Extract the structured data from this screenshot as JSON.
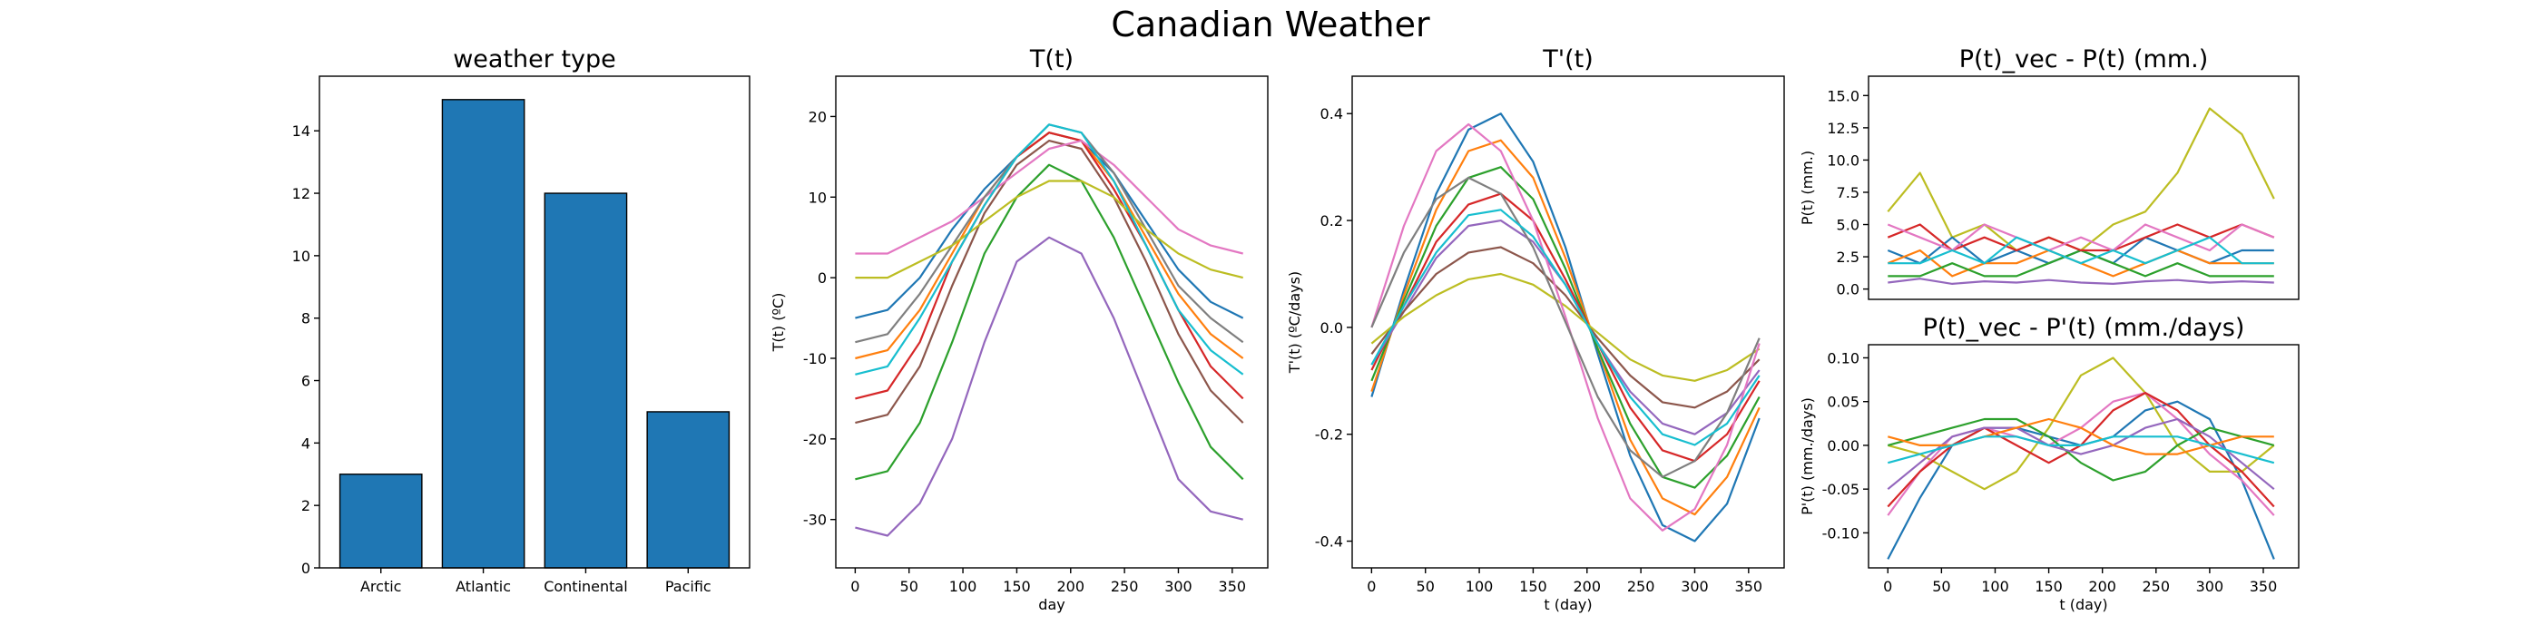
{
  "title": "Canadian Weather",
  "chart_data": [
    {
      "type": "bar",
      "title": "weather type",
      "categories": [
        "Arctic",
        "Atlantic",
        "Continental",
        "Pacific"
      ],
      "values": [
        3,
        15,
        12,
        5
      ],
      "color": "#1f77b4",
      "edgecolor": "#000000",
      "ylim": [
        0,
        15.75
      ],
      "yticks": [
        0,
        2,
        4,
        6,
        8,
        10,
        12,
        14
      ]
    },
    {
      "type": "line",
      "title": "T(t)",
      "xlabel": "day",
      "ylabel": "T(t) (ºC)",
      "xlim": [
        -18,
        383
      ],
      "xticks": [
        0,
        50,
        100,
        150,
        200,
        250,
        300,
        350
      ],
      "ylim": [
        -36,
        25
      ],
      "yticks": [
        -30,
        -20,
        -10,
        0,
        10,
        20
      ],
      "x": [
        0,
        30,
        60,
        90,
        120,
        150,
        180,
        210,
        240,
        270,
        300,
        330,
        360
      ],
      "series": [
        {
          "color": "#1f77b4",
          "values": [
            -5,
            -4,
            0,
            6,
            11,
            15,
            18,
            17,
            13,
            7,
            1,
            -3,
            -5
          ]
        },
        {
          "color": "#ff7f0e",
          "values": [
            -10,
            -9,
            -4,
            3,
            10,
            15,
            18,
            17,
            12,
            5,
            -2,
            -7,
            -10
          ]
        },
        {
          "color": "#2ca02c",
          "values": [
            -25,
            -24,
            -18,
            -8,
            3,
            10,
            14,
            12,
            5,
            -4,
            -13,
            -21,
            -25
          ]
        },
        {
          "color": "#d62728",
          "values": [
            -15,
            -14,
            -8,
            2,
            9,
            15,
            18,
            17,
            11,
            4,
            -4,
            -11,
            -15
          ]
        },
        {
          "color": "#9467bd",
          "values": [
            -31,
            -32,
            -28,
            -20,
            -8,
            2,
            5,
            3,
            -5,
            -15,
            -25,
            -29,
            -30
          ]
        },
        {
          "color": "#8c564b",
          "values": [
            -18,
            -17,
            -11,
            -1,
            8,
            14,
            17,
            16,
            10,
            2,
            -7,
            -14,
            -18
          ]
        },
        {
          "color": "#e377c2",
          "values": [
            3,
            3,
            5,
            7,
            10,
            13,
            16,
            17,
            14,
            10,
            6,
            4,
            3
          ]
        },
        {
          "color": "#7f7f7f",
          "values": [
            -8,
            -7,
            -2,
            4,
            10,
            15,
            19,
            18,
            13,
            6,
            -1,
            -5,
            -8
          ]
        },
        {
          "color": "#bcbd22",
          "values": [
            0,
            0,
            2,
            4,
            7,
            10,
            12,
            12,
            10,
            6,
            3,
            1,
            0
          ]
        },
        {
          "color": "#17becf",
          "values": [
            -12,
            -11,
            -5,
            2,
            9,
            15,
            19,
            18,
            12,
            4,
            -4,
            -9,
            -12
          ]
        }
      ]
    },
    {
      "type": "line",
      "title": "T'(t)",
      "xlabel": "t (day)",
      "ylabel": "T'(t) (ºC/days)",
      "xlim": [
        -18,
        383
      ],
      "xticks": [
        0,
        50,
        100,
        150,
        200,
        250,
        300,
        350
      ],
      "ylim": [
        -0.45,
        0.47
      ],
      "yticks": [
        -0.4,
        -0.2,
        {
          "value": 0,
          "label": "0.0"
        },
        0.2,
        0.4
      ],
      "x": [
        0,
        30,
        60,
        90,
        120,
        150,
        180,
        210,
        240,
        270,
        300,
        330,
        360
      ],
      "series": [
        {
          "color": "#1f77b4",
          "values": [
            -0.13,
            0.07,
            0.25,
            0.37,
            0.4,
            0.31,
            0.15,
            -0.05,
            -0.24,
            -0.37,
            -0.4,
            -0.33,
            -0.17
          ]
        },
        {
          "color": "#ff7f0e",
          "values": [
            -0.12,
            0.06,
            0.22,
            0.33,
            0.35,
            0.28,
            0.13,
            -0.04,
            -0.21,
            -0.32,
            -0.35,
            -0.28,
            -0.15
          ]
        },
        {
          "color": "#2ca02c",
          "values": [
            -0.1,
            0.05,
            0.19,
            0.28,
            0.3,
            0.24,
            0.11,
            -0.04,
            -0.18,
            -0.28,
            -0.3,
            -0.24,
            -0.13
          ]
        },
        {
          "color": "#d62728",
          "values": [
            -0.08,
            0.04,
            0.16,
            0.23,
            0.25,
            0.2,
            0.09,
            -0.03,
            -0.15,
            -0.23,
            -0.25,
            -0.2,
            -0.1
          ]
        },
        {
          "color": "#9467bd",
          "values": [
            -0.07,
            0.03,
            0.13,
            0.19,
            0.2,
            0.16,
            0.08,
            -0.03,
            -0.12,
            -0.18,
            -0.2,
            -0.16,
            -0.08
          ]
        },
        {
          "color": "#8c564b",
          "values": [
            -0.05,
            0.03,
            0.1,
            0.14,
            0.15,
            0.12,
            0.06,
            -0.02,
            -0.09,
            -0.14,
            -0.15,
            -0.12,
            -0.06
          ]
        },
        {
          "color": "#bcbd22",
          "values": [
            -0.03,
            0.02,
            0.06,
            0.09,
            0.1,
            0.08,
            0.04,
            -0.01,
            -0.06,
            -0.09,
            -0.1,
            -0.08,
            -0.04
          ]
        },
        {
          "color": "#e377c2",
          "values": [
            0,
            0.19,
            0.33,
            0.38,
            0.33,
            0.2,
            0.02,
            -0.17,
            -0.32,
            -0.38,
            -0.34,
            -0.22,
            -0.03
          ]
        },
        {
          "color": "#7f7f7f",
          "values": [
            0,
            0.14,
            0.24,
            0.28,
            0.25,
            0.15,
            0.01,
            -0.13,
            -0.23,
            -0.28,
            -0.25,
            -0.16,
            -0.02
          ]
        },
        {
          "color": "#17becf",
          "values": [
            -0.07,
            0.04,
            0.14,
            0.21,
            0.22,
            0.17,
            0.08,
            -0.03,
            -0.13,
            -0.2,
            -0.22,
            -0.18,
            -0.09
          ]
        }
      ]
    },
    {
      "type": "line",
      "title": "P(t)_vec - P(t) (mm.)",
      "ylabel": "P(t) (mm.)",
      "xlim": [
        -18,
        383
      ],
      "ylim": [
        -0.8,
        16.5
      ],
      "yticks": [
        {
          "value": 0,
          "label": "0.0"
        },
        {
          "value": 2.5,
          "label": "2.5"
        },
        {
          "value": 5,
          "label": "5.0"
        },
        {
          "value": 7.5,
          "label": "7.5"
        },
        {
          "value": 10,
          "label": "10.0"
        },
        {
          "value": 12.5,
          "label": "12.5"
        },
        {
          "value": 15,
          "label": "15.0"
        }
      ],
      "x": [
        0,
        30,
        60,
        90,
        120,
        150,
        180,
        210,
        240,
        270,
        300,
        330,
        360
      ],
      "series": [
        {
          "color": "#bcbd22",
          "values": [
            6,
            9,
            4,
            5,
            3,
            4,
            3,
            5,
            6,
            9,
            14,
            12,
            7
          ]
        },
        {
          "color": "#1f77b4",
          "values": [
            3,
            2,
            4,
            2,
            3,
            2,
            3,
            2,
            4,
            3,
            2,
            3,
            3
          ]
        },
        {
          "color": "#ff7f0e",
          "values": [
            2,
            3,
            1,
            2,
            2,
            3,
            2,
            1,
            2,
            3,
            2,
            2,
            2
          ]
        },
        {
          "color": "#2ca02c",
          "values": [
            1,
            1,
            2,
            1,
            1,
            2,
            3,
            2,
            1,
            2,
            1,
            1,
            1
          ]
        },
        {
          "color": "#d62728",
          "values": [
            4,
            5,
            3,
            4,
            3,
            4,
            3,
            3,
            4,
            5,
            4,
            5,
            4
          ]
        },
        {
          "color": "#9467bd",
          "values": [
            0.5,
            0.8,
            0.4,
            0.6,
            0.5,
            0.7,
            0.5,
            0.4,
            0.6,
            0.7,
            0.5,
            0.6,
            0.5
          ]
        },
        {
          "color": "#e377c2",
          "values": [
            5,
            4,
            3,
            5,
            4,
            3,
            4,
            3,
            5,
            4,
            3,
            5,
            4
          ]
        },
        {
          "color": "#17becf",
          "values": [
            2,
            2,
            3,
            2,
            4,
            3,
            2,
            3,
            2,
            3,
            4,
            2,
            2
          ]
        }
      ]
    },
    {
      "type": "line",
      "title": "P(t)_vec - P'(t) (mm./days)",
      "xlabel": "t (day)",
      "ylabel": "P'(t) (mm./days)",
      "xlim": [
        -18,
        383
      ],
      "xticks": [
        0,
        50,
        100,
        150,
        200,
        250,
        300,
        350
      ],
      "ylim": [
        -0.14,
        0.115
      ],
      "yticks": [
        {
          "value": -0.1,
          "label": "-0.10"
        },
        {
          "value": -0.05,
          "label": "-0.05"
        },
        {
          "value": 0,
          "label": "0.00"
        },
        {
          "value": 0.05,
          "label": "0.05"
        },
        {
          "value": 0.1,
          "label": "0.10"
        }
      ],
      "x": [
        0,
        30,
        60,
        90,
        120,
        150,
        180,
        210,
        240,
        270,
        300,
        330,
        360
      ],
      "series": [
        {
          "color": "#1f77b4",
          "values": [
            -0.13,
            -0.06,
            0,
            0.02,
            0.02,
            0.01,
            0,
            0.01,
            0.04,
            0.05,
            0.03,
            -0.04,
            -0.13
          ]
        },
        {
          "color": "#bcbd22",
          "values": [
            0,
            -0.01,
            -0.03,
            -0.05,
            -0.03,
            0.02,
            0.08,
            0.1,
            0.06,
            0,
            -0.03,
            -0.03,
            0
          ]
        },
        {
          "color": "#e377c2",
          "values": [
            -0.08,
            -0.03,
            0.01,
            0.02,
            0.01,
            0,
            0.02,
            0.05,
            0.06,
            0.03,
            -0.01,
            -0.04,
            -0.08
          ]
        },
        {
          "color": "#d62728",
          "values": [
            -0.07,
            -0.03,
            0,
            0.02,
            0,
            -0.02,
            0,
            0.04,
            0.06,
            0.04,
            0,
            -0.03,
            -0.07
          ]
        },
        {
          "color": "#2ca02c",
          "values": [
            0,
            0.01,
            0.02,
            0.03,
            0.03,
            0.01,
            -0.02,
            -0.04,
            -0.03,
            0,
            0.02,
            0.01,
            0
          ]
        },
        {
          "color": "#9467bd",
          "values": [
            -0.05,
            -0.02,
            0.01,
            0.02,
            0.02,
            0,
            -0.01,
            0,
            0.02,
            0.03,
            0.01,
            -0.02,
            -0.05
          ]
        },
        {
          "color": "#ff7f0e",
          "values": [
            0.01,
            0,
            0,
            0.01,
            0.02,
            0.03,
            0.02,
            0,
            -0.01,
            -0.01,
            0,
            0.01,
            0.01
          ]
        },
        {
          "color": "#17becf",
          "values": [
            -0.02,
            -0.01,
            0,
            0.01,
            0.01,
            0,
            0,
            0.01,
            0.01,
            0.01,
            0,
            -0.01,
            -0.02
          ]
        }
      ]
    }
  ]
}
